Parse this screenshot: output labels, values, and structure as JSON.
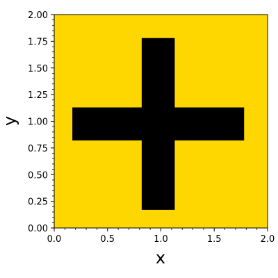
{
  "chart_data": {
    "type": "heatmap",
    "title": "",
    "xlabel": "x",
    "ylabel": "y",
    "xlim": [
      0,
      2
    ],
    "ylim": [
      0,
      2
    ],
    "grid": false,
    "colors": {
      "background": "#FFD700",
      "shape": "#000000"
    },
    "x_ticks": [
      "0.0",
      "0.5",
      "1.0",
      "1.5",
      "2.0"
    ],
    "y_ticks": [
      "0.00",
      "0.25",
      "0.50",
      "0.75",
      "1.00",
      "1.25",
      "1.50",
      "1.75",
      "2.00"
    ],
    "shapes": [
      {
        "name": "vertical-bar",
        "x0": 0.82,
        "x1": 1.13,
        "y0": 0.17,
        "y1": 1.78
      },
      {
        "name": "horizontal-bar",
        "x0": 0.17,
        "x1": 1.78,
        "y0": 0.82,
        "y1": 1.13
      }
    ]
  }
}
